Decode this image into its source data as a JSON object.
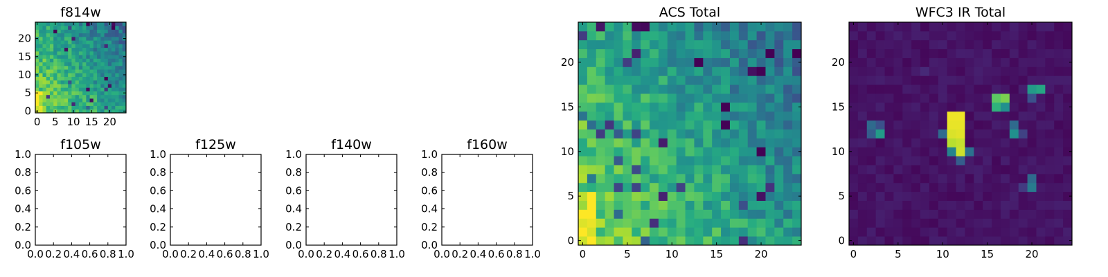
{
  "chart_data": [
    {
      "type": "heatmap",
      "title": "f814w",
      "colormap": "viridis",
      "grid_size": [
        25,
        25
      ],
      "seed": 11,
      "pattern": "acs",
      "xticks": [
        0,
        5,
        10,
        15,
        20
      ],
      "yticks": [
        0,
        5,
        10,
        15,
        20
      ],
      "xlim": [
        -0.5,
        24.5
      ],
      "ylim": [
        -0.5,
        24.5
      ],
      "values": null
    },
    {
      "type": "heatmap",
      "title": "f105w",
      "empty": true,
      "xticks": [
        "0.0",
        "0.2",
        "0.4",
        "0.6",
        "0.8",
        "1.0"
      ],
      "yticks": [
        "0.0",
        "0.2",
        "0.4",
        "0.6",
        "0.8",
        "1.0"
      ],
      "xlim": [
        0,
        1
      ],
      "ylim": [
        0,
        1
      ]
    },
    {
      "type": "heatmap",
      "title": "f125w",
      "empty": true,
      "xticks": [
        "0.0",
        "0.2",
        "0.4",
        "0.6",
        "0.8",
        "1.0"
      ],
      "yticks": [
        "0.0",
        "0.2",
        "0.4",
        "0.6",
        "0.8",
        "1.0"
      ],
      "xlim": [
        0,
        1
      ],
      "ylim": [
        0,
        1
      ]
    },
    {
      "type": "heatmap",
      "title": "f140w",
      "empty": true,
      "xticks": [
        "0.0",
        "0.2",
        "0.4",
        "0.6",
        "0.8",
        "1.0"
      ],
      "yticks": [
        "0.0",
        "0.2",
        "0.4",
        "0.6",
        "0.8",
        "1.0"
      ],
      "xlim": [
        0,
        1
      ],
      "ylim": [
        0,
        1
      ]
    },
    {
      "type": "heatmap",
      "title": "f160w",
      "empty": true,
      "xticks": [
        "0.0",
        "0.2",
        "0.4",
        "0.6",
        "0.8",
        "1.0"
      ],
      "yticks": [
        "0.0",
        "0.2",
        "0.4",
        "0.6",
        "0.8",
        "1.0"
      ],
      "xlim": [
        0,
        1
      ],
      "ylim": [
        0,
        1
      ]
    },
    {
      "type": "heatmap",
      "title": "ACS Total",
      "colormap": "viridis",
      "grid_size": [
        25,
        25
      ],
      "seed": 29,
      "pattern": "acs",
      "xticks": [
        0,
        5,
        10,
        15,
        20
      ],
      "yticks": [
        0,
        5,
        10,
        15,
        20
      ],
      "xlim": [
        -0.5,
        24.5
      ],
      "ylim": [
        -0.5,
        24.5
      ],
      "values": null
    },
    {
      "type": "heatmap",
      "title": "WFC3 IR Total",
      "colormap": "viridis",
      "grid_size": [
        25,
        25
      ],
      "seed": 7,
      "pattern": "ir",
      "xticks": [
        0,
        5,
        10,
        15,
        20
      ],
      "yticks": [
        0,
        5,
        10,
        15,
        20
      ],
      "xlim": [
        -0.5,
        24.5
      ],
      "ylim": [
        -0.5,
        24.5
      ],
      "hot_pixels": [
        {
          "x": 11,
          "y": 14,
          "v": 0.98
        },
        {
          "x": 12,
          "y": 14,
          "v": 0.98
        },
        {
          "x": 11,
          "y": 13,
          "v": 0.97
        },
        {
          "x": 12,
          "y": 13,
          "v": 0.97
        },
        {
          "x": 11,
          "y": 12,
          "v": 0.95
        },
        {
          "x": 12,
          "y": 12,
          "v": 0.96
        },
        {
          "x": 11,
          "y": 11,
          "v": 0.9
        },
        {
          "x": 12,
          "y": 11,
          "v": 0.92
        },
        {
          "x": 11,
          "y": 10,
          "v": 0.45
        },
        {
          "x": 12,
          "y": 10,
          "v": 0.93
        },
        {
          "x": 10,
          "y": 12,
          "v": 0.35
        },
        {
          "x": 13,
          "y": 10,
          "v": 0.38
        },
        {
          "x": 12,
          "y": 9,
          "v": 0.3
        },
        {
          "x": 16,
          "y": 16,
          "v": 0.75
        },
        {
          "x": 17,
          "y": 16,
          "v": 0.8
        },
        {
          "x": 16,
          "y": 15,
          "v": 0.65
        },
        {
          "x": 17,
          "y": 15,
          "v": 0.5
        },
        {
          "x": 20,
          "y": 17,
          "v": 0.55
        },
        {
          "x": 21,
          "y": 17,
          "v": 0.6
        },
        {
          "x": 20,
          "y": 16,
          "v": 0.25
        },
        {
          "x": 2,
          "y": 13,
          "v": 0.35
        },
        {
          "x": 3,
          "y": 13,
          "v": 0.25
        },
        {
          "x": 2,
          "y": 12,
          "v": 0.3
        },
        {
          "x": 3,
          "y": 12,
          "v": 0.55
        },
        {
          "x": 18,
          "y": 13,
          "v": 0.35
        },
        {
          "x": 18,
          "y": 12,
          "v": 0.5
        },
        {
          "x": 19,
          "y": 12,
          "v": 0.2
        },
        {
          "x": 20,
          "y": 7,
          "v": 0.35
        },
        {
          "x": 20,
          "y": 6,
          "v": 0.42
        },
        {
          "x": 19,
          "y": 6,
          "v": 0.18
        },
        {
          "x": 8,
          "y": 19,
          "v": 0.12
        }
      ],
      "values": null
    }
  ]
}
